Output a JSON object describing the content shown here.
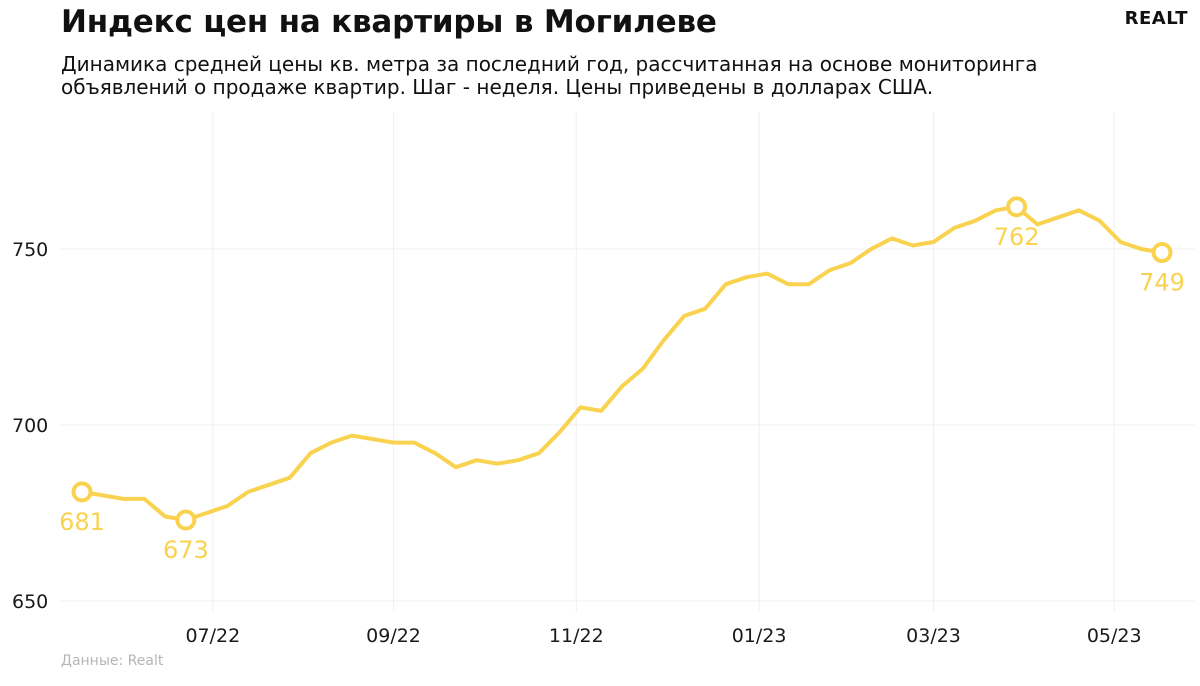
{
  "header": {
    "title": "Индекс цен на квартиры в Могилеве",
    "subtitle": "Динамика средней цены кв. метра за последний год, рассчитанная на основе мониторинга объявлений о продаже квартир. Шаг - неделя. Цены приведены в долларах США.",
    "logo": "REALT"
  },
  "footer": {
    "source": "Данные: Realt"
  },
  "colors": {
    "line": "#F9D24F",
    "grid": "#f0f0f0",
    "marker_fill": "#ffffff",
    "label": "#F9D24F"
  },
  "chart_data": {
    "type": "line",
    "title": "Индекс цен на квартиры в Могилеве",
    "xlabel": "",
    "ylabel": "",
    "ylim": [
      647,
      780
    ],
    "y_ticks": [
      650,
      700,
      750
    ],
    "x_ticks": [
      {
        "label": "07/22",
        "week": 6.3
      },
      {
        "label": "09/22",
        "week": 15.0
      },
      {
        "label": "11/22",
        "week": 23.8
      },
      {
        "label": "01/23",
        "week": 32.6
      },
      {
        "label": "03/23",
        "week": 41.0
      },
      {
        "label": "05/23",
        "week": 49.7
      }
    ],
    "grid": true,
    "series": [
      {
        "values": [
          681,
          680,
          679,
          679,
          674,
          673,
          675,
          677,
          681,
          683,
          685,
          692,
          695,
          697,
          696,
          695,
          695,
          692,
          688,
          690,
          689,
          690,
          692,
          698,
          705,
          704,
          711,
          716,
          724,
          731,
          733,
          740,
          742,
          743,
          740,
          740,
          744,
          746,
          750,
          753,
          751,
          752,
          756,
          758,
          761,
          762,
          757,
          759,
          761,
          758,
          752,
          750,
          749
        ]
      }
    ],
    "annotations": [
      {
        "index": 0,
        "label": "681",
        "position": "below"
      },
      {
        "index": 5,
        "label": "673",
        "position": "below"
      },
      {
        "index": 45,
        "label": "762",
        "position": "below"
      },
      {
        "index": 52,
        "label": "749",
        "position": "below"
      }
    ]
  }
}
